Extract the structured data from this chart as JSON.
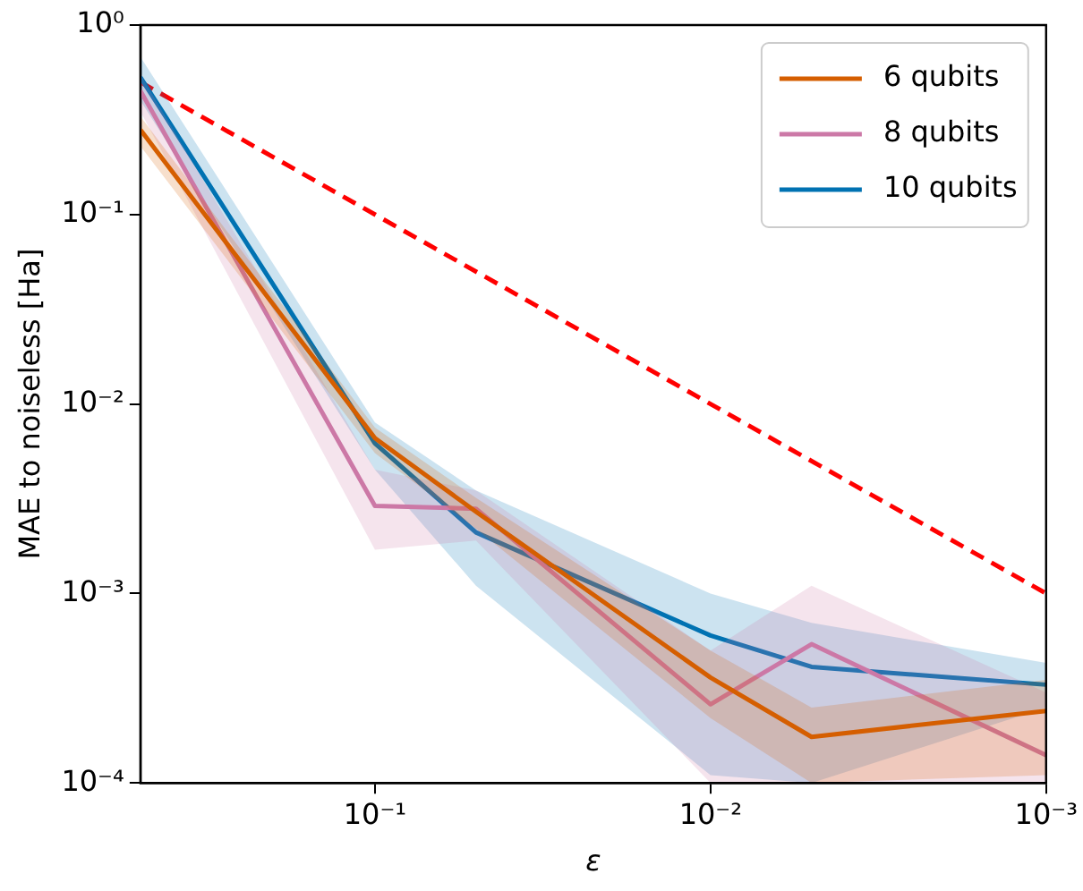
{
  "chart_data": {
    "type": "line",
    "xlabel": "ε",
    "ylabel": "MAE to noiseless [Ha]",
    "x": [
      0.5,
      0.1,
      0.05,
      0.01,
      0.005,
      0.001
    ],
    "log": "xy",
    "xlim": [
      0.5,
      0.001
    ],
    "ylim": [
      0.0001,
      1
    ],
    "xticks": [
      {
        "value": 0.1,
        "label": "10⁻¹"
      },
      {
        "value": 0.01,
        "label": "10⁻²"
      },
      {
        "value": 0.001,
        "label": "10⁻³"
      }
    ],
    "yticks": [
      {
        "value": 1,
        "label": "10⁰"
      },
      {
        "value": 0.1,
        "label": "10⁻¹"
      },
      {
        "value": 0.01,
        "label": "10⁻²"
      },
      {
        "value": 0.001,
        "label": "10⁻³"
      },
      {
        "value": 0.0001,
        "label": "10⁻⁴"
      }
    ],
    "legend": "top right",
    "grid": false,
    "line_style": "solid",
    "marker": "none",
    "series": [
      {
        "name": "6 qubits",
        "color": "#d55e00",
        "values": [
          0.28,
          0.0066,
          0.0027,
          0.00036,
          0.000175,
          0.00024
        ],
        "lower": [
          0.23,
          0.0055,
          0.0022,
          0.00022,
          0.0001,
          0.00011
        ],
        "upper": [
          0.33,
          0.0075,
          0.0032,
          0.0005,
          0.00025,
          0.00035
        ]
      },
      {
        "name": "8 qubits",
        "color": "#cc79a7",
        "values": [
          0.45,
          0.0029,
          0.0028,
          0.00026,
          0.00054,
          0.00014
        ],
        "lower": [
          0.35,
          0.0017,
          0.0019,
          0.0001,
          0.0001,
          0.0001
        ],
        "upper": [
          0.55,
          0.0045,
          0.0035,
          0.0005,
          0.0011,
          0.0003
        ]
      },
      {
        "name": "10 qubits",
        "color": "#0072b2",
        "values": [
          0.53,
          0.0062,
          0.0021,
          0.0006,
          0.00041,
          0.00033
        ],
        "lower": [
          0.4,
          0.0045,
          0.0011,
          0.00011,
          0.0001,
          0.00025
        ],
        "upper": [
          0.68,
          0.008,
          0.0035,
          0.001,
          0.0007,
          0.00043
        ]
      },
      {
        "type": "line",
        "color": "#ff0000",
        "line_style": "dashed",
        "x": [
          0.5,
          0.001
        ],
        "values": [
          0.5,
          0.001
        ]
      }
    ]
  }
}
